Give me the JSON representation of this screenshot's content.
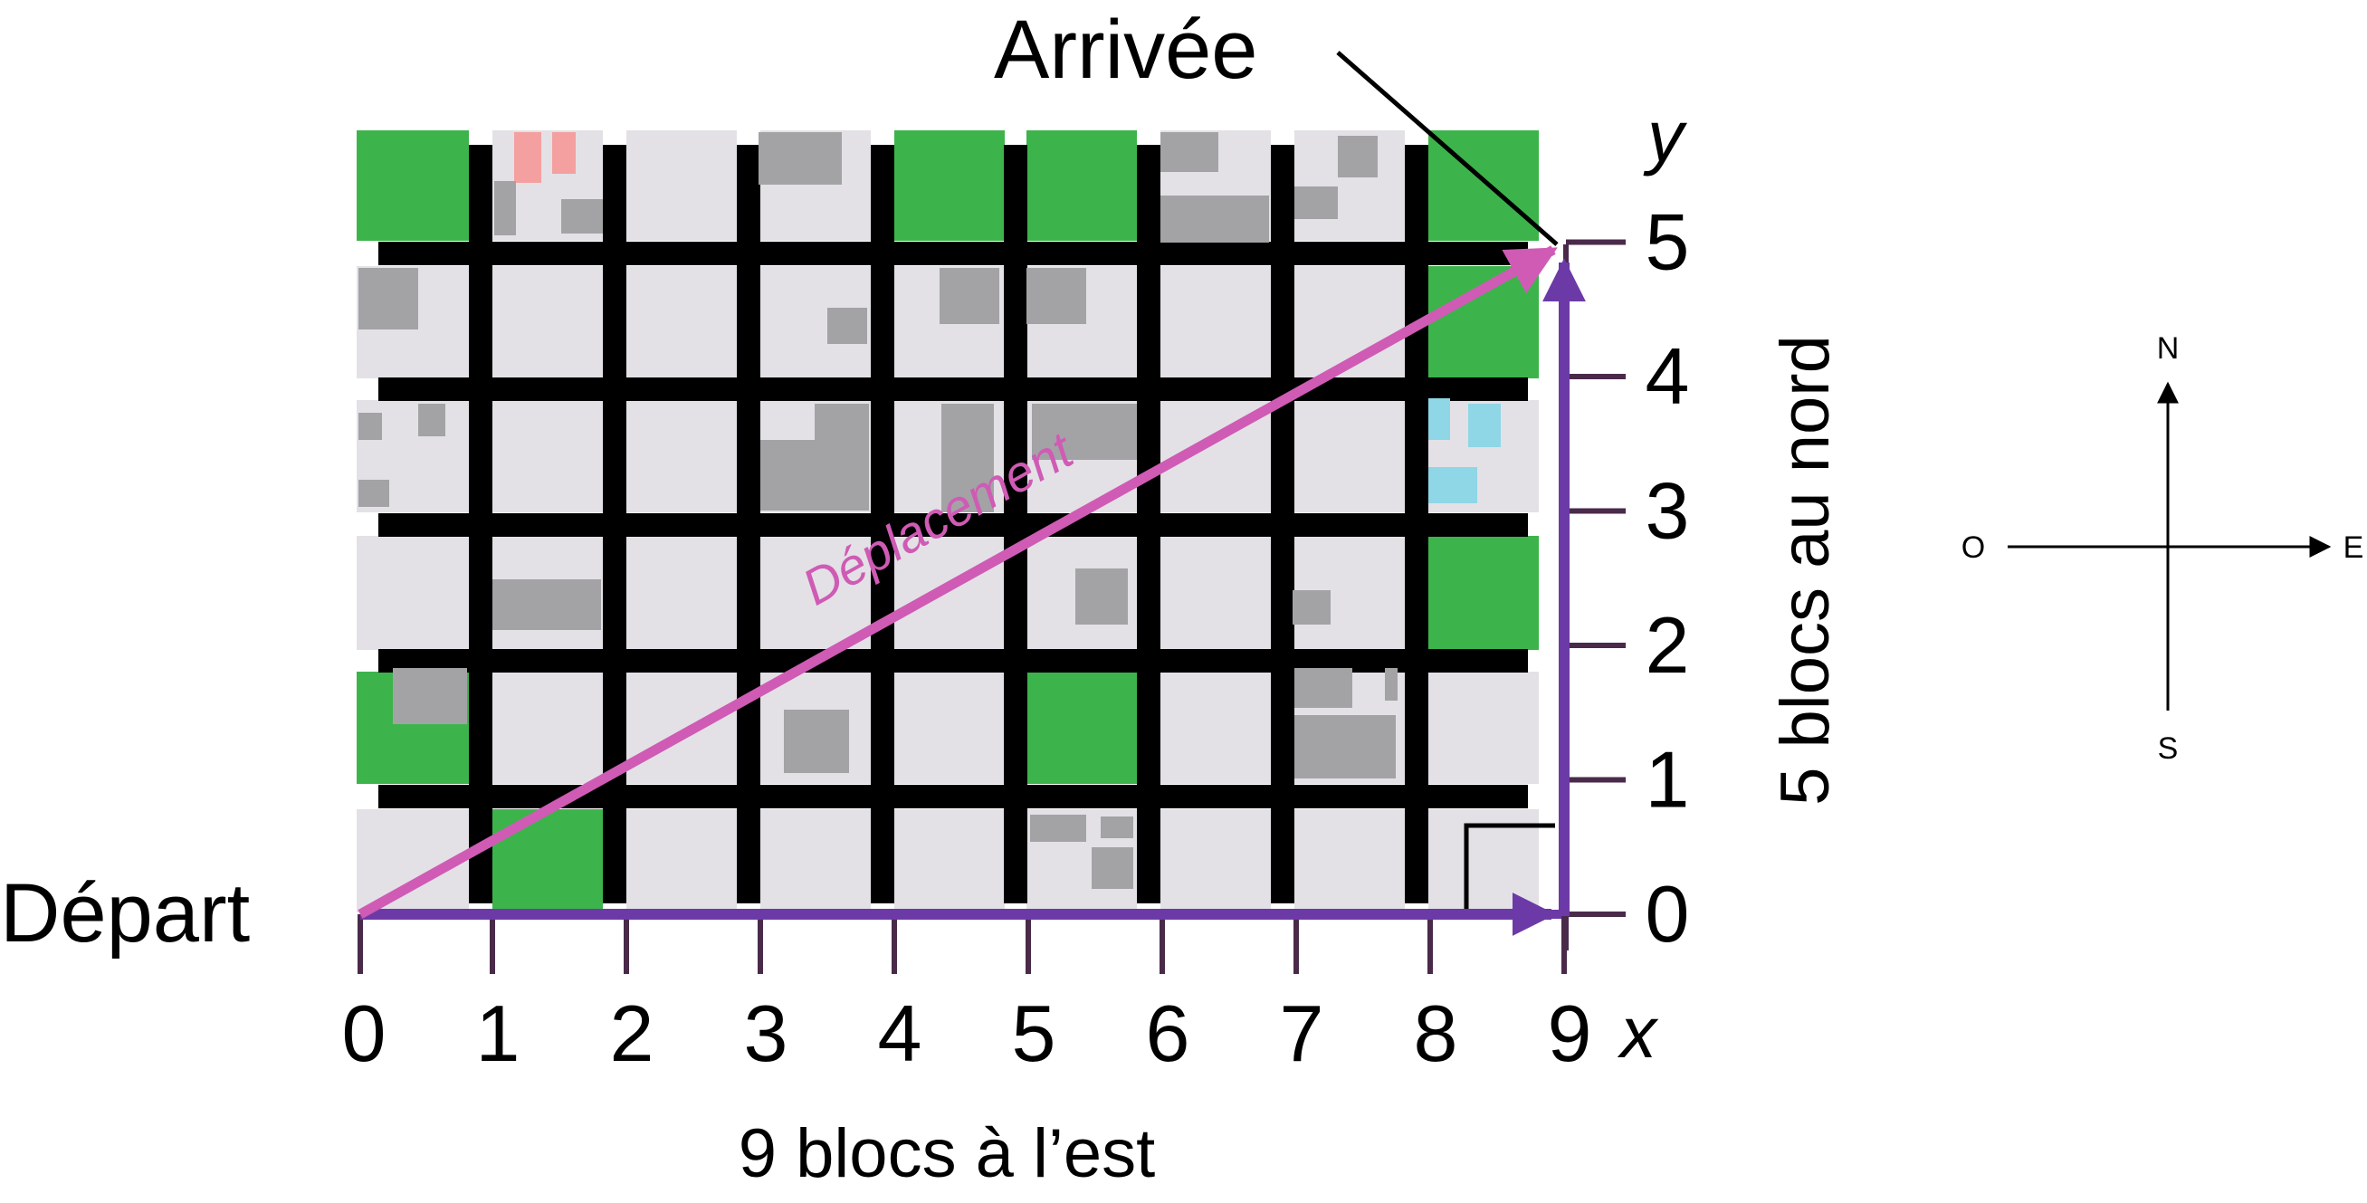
{
  "labels": {
    "start": "Départ",
    "finish": "Arrivée",
    "displacement": "Déplacement",
    "east_distance": "9 blocs à l’est",
    "north_distance": "5 blocs au nord",
    "x_axis": "x",
    "y_axis": "y"
  },
  "compass": {
    "north": "N",
    "south": "S",
    "east": "E",
    "west": "O"
  },
  "x_ticks": [
    "0",
    "1",
    "2",
    "3",
    "4",
    "5",
    "6",
    "7",
    "8",
    "9"
  ],
  "y_ticks": [
    "0",
    "1",
    "2",
    "3",
    "4",
    "5"
  ],
  "vectors": {
    "east": {
      "from": [
        0,
        0
      ],
      "to": [
        9,
        0
      ]
    },
    "north": {
      "from": [
        9,
        0
      ],
      "to": [
        9,
        5
      ]
    },
    "displacement": {
      "from": [
        0,
        0
      ],
      "to": [
        9,
        5
      ]
    }
  },
  "colors": {
    "road": "#000000",
    "block": "#e3e1e6",
    "park": "#3cb44b",
    "building": "#a3a3a6",
    "house_red": "#f4a0a0",
    "water_blue": "#8fd6e6",
    "component_vector": "#6c3aa6",
    "displacement_vector": "#cf5bb5",
    "tick": "#4a2a4a"
  },
  "parks": [
    [
      0,
      5
    ],
    [
      4,
      5
    ],
    [
      5,
      5
    ],
    [
      8,
      5
    ],
    [
      8,
      4
    ],
    [
      8,
      2
    ],
    [
      0,
      1
    ],
    [
      5,
      1
    ],
    [
      1,
      0
    ]
  ]
}
